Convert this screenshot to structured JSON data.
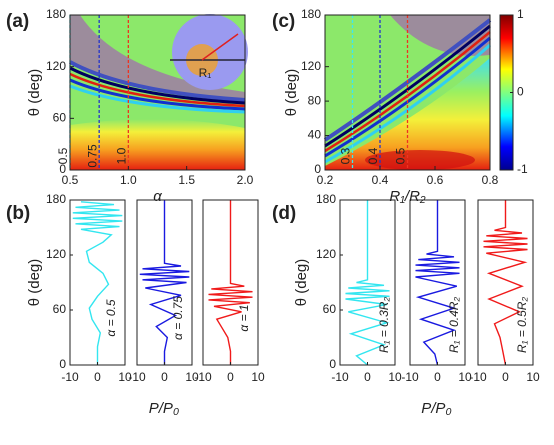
{
  "chart_data": [
    {
      "type": "heatmap",
      "panel": "(a)",
      "x_label": "α",
      "y_label": "θ (deg)",
      "xlim": [
        0.5,
        2.0
      ],
      "xticks": [
        0.5,
        {
          "value": 1,
          "label": "1.0"
        },
        1.5,
        {
          "value": 2,
          "label": "2.0"
        }
      ],
      "ylim": [
        0,
        180
      ],
      "yticks": [
        0,
        60,
        120,
        180
      ],
      "markers": [
        {
          "value": 0.5,
          "label": "0.5",
          "color": "#3ee8ee"
        },
        {
          "value": 0.75,
          "label": "0.75",
          "color": "#2233cc"
        },
        {
          "value": 1,
          "label": "1.0",
          "color": "#ee3322"
        }
      ],
      "inset_label": "R₁"
    },
    {
      "type": "line",
      "panel": "(b)",
      "y_label": "θ (deg)",
      "x_label": "P/P₀",
      "xlim": [
        -10,
        10
      ],
      "xticks": [
        -10,
        0,
        10
      ],
      "ylim": [
        0,
        180
      ],
      "yticks": [
        0,
        60,
        120,
        180
      ],
      "series": [
        {
          "name": "α = 0.5",
          "color": "#33e6f0",
          "y": [
            0,
            20,
            35,
            50,
            62,
            75,
            88,
            100,
            112,
            124,
            134,
            142,
            148,
            151,
            154,
            157,
            160,
            163,
            166,
            169,
            172,
            175,
            178
          ],
          "values": [
            0,
            0,
            1,
            -2,
            -3,
            0,
            4,
            2,
            -3,
            -4,
            2,
            5,
            -6,
            8,
            -8,
            9,
            -9,
            9,
            -9,
            8,
            -8,
            6,
            -6
          ]
        },
        {
          "name": "α = 0.75",
          "color": "#1a1ae0",
          "y": [
            0,
            15,
            30,
            42,
            54,
            66,
            76,
            84,
            90,
            93,
            96,
            99,
            102,
            105,
            108,
            111,
            180
          ],
          "values": [
            0,
            0,
            1,
            -3,
            4,
            -5,
            6,
            -7,
            8,
            -8,
            9,
            -9,
            9,
            -8,
            6,
            0,
            0
          ]
        },
        {
          "name": "α = 1",
          "color": "#f01a1a",
          "y": [
            0,
            15,
            30,
            40,
            50,
            58,
            64,
            68,
            71,
            74,
            77,
            80,
            83,
            86,
            89,
            180
          ],
          "values": [
            0,
            0,
            -1,
            -3,
            -5,
            4,
            -6,
            7,
            -8,
            8,
            -8,
            8,
            -7,
            5,
            0,
            0
          ]
        }
      ]
    },
    {
      "type": "heatmap",
      "panel": "(c)",
      "x_label": "R₁/R₂",
      "y_label": "θ (deg)",
      "xlim": [
        0.2,
        0.8
      ],
      "xticks": [
        0.2,
        0.4,
        0.6,
        0.8
      ],
      "ylim": [
        0,
        180
      ],
      "yticks": [
        0,
        40,
        80,
        120,
        180
      ],
      "markers": [
        {
          "value": 0.3,
          "label": "0.3",
          "color": "#3ee8ee"
        },
        {
          "value": 0.4,
          "label": "0.4",
          "color": "#2233cc"
        },
        {
          "value": 0.5,
          "label": "0.5",
          "color": "#ee3322"
        }
      ],
      "clim": [
        -1,
        1
      ],
      "cticks": [
        -1,
        0,
        1
      ]
    },
    {
      "type": "line",
      "panel": "(d)",
      "y_label": "θ (deg)",
      "x_label": "P/P₀",
      "xlim": [
        -10,
        10
      ],
      "xticks": [
        -10,
        0,
        10
      ],
      "ylim": [
        0,
        180
      ],
      "yticks": [
        0,
        60,
        120,
        180
      ],
      "series": [
        {
          "name": "R₁ = 0.3R₂",
          "color": "#33e6f0",
          "y": [
            0,
            10,
            22,
            34,
            46,
            58,
            66,
            72,
            75,
            78,
            81,
            84,
            87,
            90,
            93,
            180
          ],
          "values": [
            0,
            -4,
            6,
            -6,
            7,
            -7,
            7,
            -8,
            8,
            -8,
            8,
            -7,
            6,
            -4,
            0,
            0
          ]
        },
        {
          "name": "R₁ = 0.4R₂",
          "color": "#1a1ae0",
          "y": [
            0,
            12,
            25,
            38,
            50,
            62,
            74,
            86,
            96,
            100,
            103,
            106,
            109,
            112,
            115,
            118,
            121,
            124,
            180
          ],
          "values": [
            0,
            -1,
            -5,
            6,
            -6,
            6,
            -7,
            7,
            -8,
            8,
            -8,
            8,
            -8,
            8,
            -7,
            6,
            -4,
            0,
            0
          ]
        },
        {
          "name": "R₁ = 0.5R₂",
          "color": "#f01a1a",
          "y": [
            0,
            15,
            30,
            45,
            58,
            72,
            86,
            100,
            112,
            122,
            126,
            129,
            132,
            135,
            138,
            141,
            144,
            147,
            150,
            180
          ],
          "values": [
            0,
            -1,
            -2,
            -4,
            5,
            -6,
            6,
            -6,
            7,
            -7,
            8,
            -8,
            8,
            -8,
            8,
            -7,
            6,
            -4,
            0,
            0
          ]
        }
      ]
    }
  ]
}
